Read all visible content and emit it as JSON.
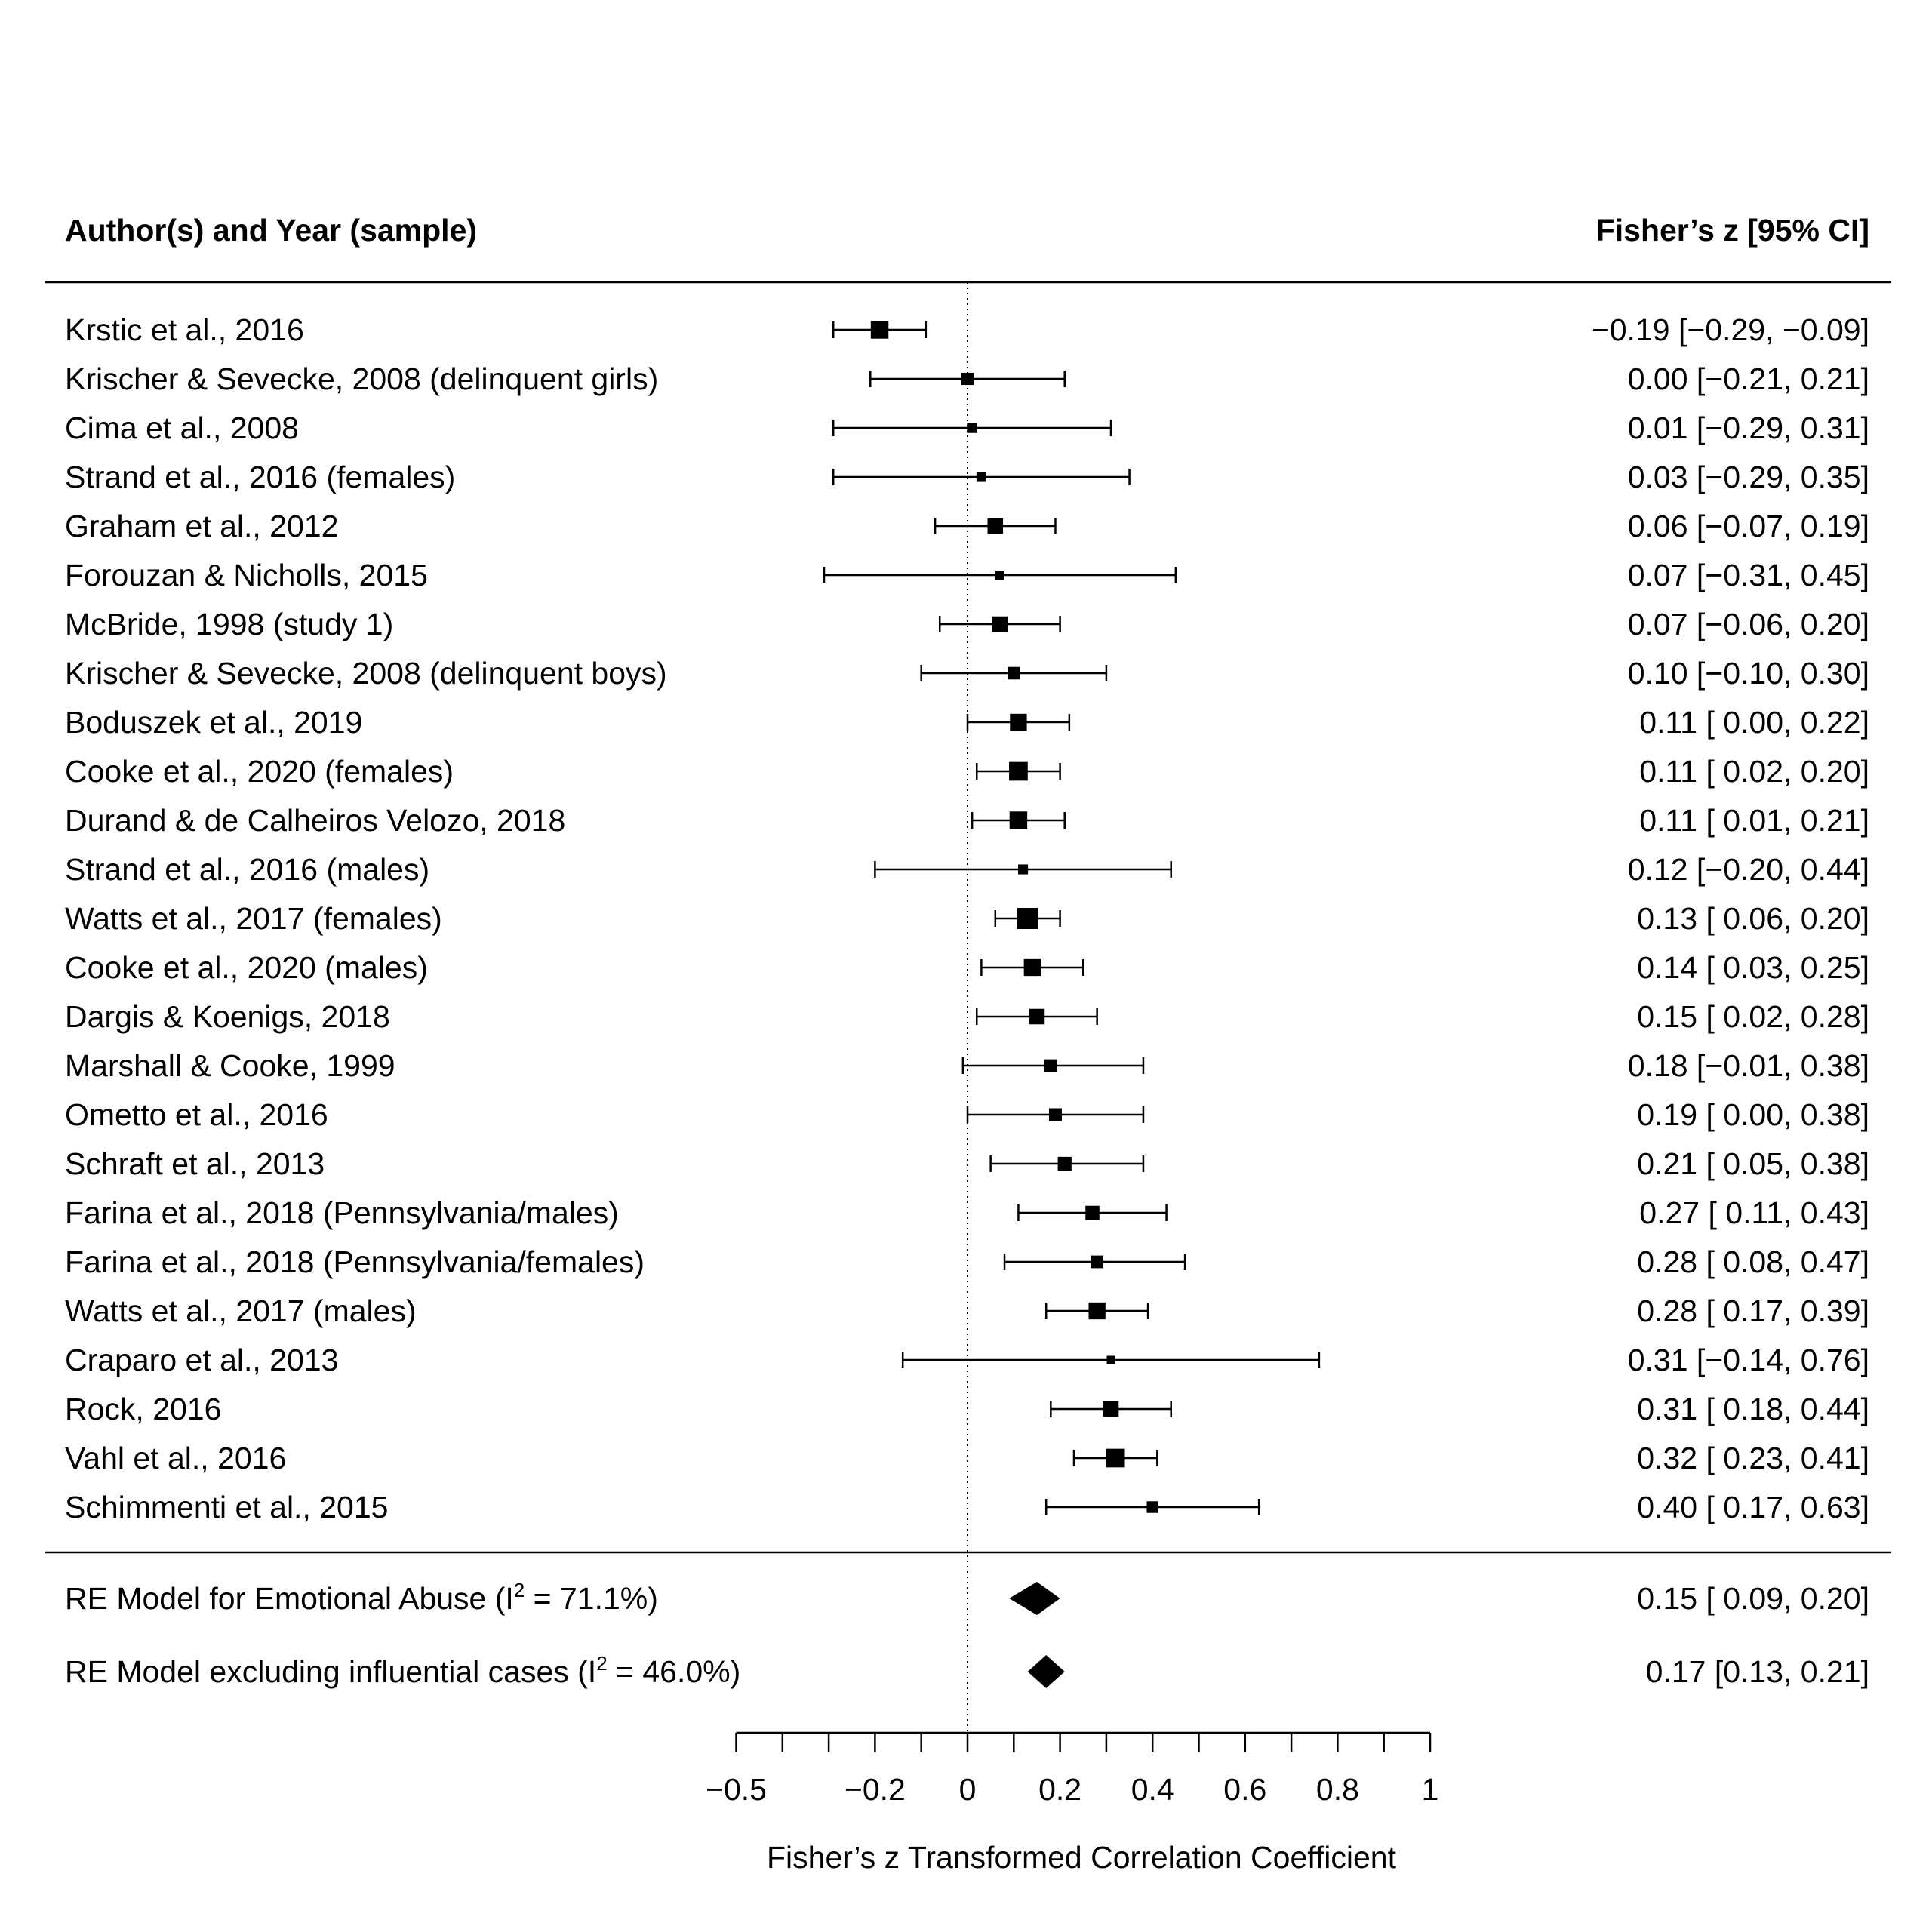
{
  "chart_data": {
    "type": "forest",
    "header_left": "Author(s) and Year (sample)",
    "header_right": "Fisher’s z [95% CI]",
    "xlabel": "Fisher’s z Transformed Correlation Coefficient",
    "xlim": [
      -0.5,
      1
    ],
    "major_ticks": [
      -0.5,
      -0.2,
      0,
      0.2,
      0.4,
      0.6,
      0.8,
      1
    ],
    "tick_labels": [
      "−0.5",
      "−0.2",
      "0",
      "0.2",
      "0.4",
      "0.6",
      "0.8",
      "1"
    ],
    "minor_tick_step": 0.1,
    "reference_line": 0,
    "studies": [
      {
        "label": "Krstic et al., 2016",
        "est": -0.19,
        "lo": -0.29,
        "hi": -0.09,
        "text": "−0.19 [−0.29, −0.09]"
      },
      {
        "label": "Krischer & Sevecke, 2008 (delinquent girls)",
        "est": 0.0,
        "lo": -0.21,
        "hi": 0.21,
        "text": "0.00 [−0.21,  0.21]"
      },
      {
        "label": "Cima et al., 2008",
        "est": 0.01,
        "lo": -0.29,
        "hi": 0.31,
        "text": "0.01 [−0.29,  0.31]"
      },
      {
        "label": "Strand et al., 2016 (females)",
        "est": 0.03,
        "lo": -0.29,
        "hi": 0.35,
        "text": "0.03 [−0.29,  0.35]"
      },
      {
        "label": "Graham et al., 2012",
        "est": 0.06,
        "lo": -0.07,
        "hi": 0.19,
        "text": "0.06 [−0.07,  0.19]"
      },
      {
        "label": "Forouzan & Nicholls, 2015",
        "est": 0.07,
        "lo": -0.31,
        "hi": 0.45,
        "text": "0.07 [−0.31,  0.45]"
      },
      {
        "label": "McBride, 1998 (study 1)",
        "est": 0.07,
        "lo": -0.06,
        "hi": 0.2,
        "text": "0.07 [−0.06,  0.20]"
      },
      {
        "label": "Krischer & Sevecke, 2008 (delinquent boys)",
        "est": 0.1,
        "lo": -0.1,
        "hi": 0.3,
        "text": "0.10 [−0.10,  0.30]"
      },
      {
        "label": "Boduszek et al., 2019",
        "est": 0.11,
        "lo": 0.0,
        "hi": 0.22,
        "text": "0.11 [ 0.00,  0.22]"
      },
      {
        "label": "Cooke et al., 2020 (females)",
        "est": 0.11,
        "lo": 0.02,
        "hi": 0.2,
        "text": "0.11 [ 0.02,  0.20]"
      },
      {
        "label": "Durand & de Calheiros Velozo, 2018",
        "est": 0.11,
        "lo": 0.01,
        "hi": 0.21,
        "text": "0.11 [ 0.01,  0.21]"
      },
      {
        "label": "Strand et al., 2016 (males)",
        "est": 0.12,
        "lo": -0.2,
        "hi": 0.44,
        "text": "0.12 [−0.20,  0.44]"
      },
      {
        "label": "Watts et al., 2017 (females)",
        "est": 0.13,
        "lo": 0.06,
        "hi": 0.2,
        "text": "0.13 [ 0.06,  0.20]"
      },
      {
        "label": "Cooke et al., 2020 (males)",
        "est": 0.14,
        "lo": 0.03,
        "hi": 0.25,
        "text": "0.14 [ 0.03,  0.25]"
      },
      {
        "label": "Dargis & Koenigs, 2018",
        "est": 0.15,
        "lo": 0.02,
        "hi": 0.28,
        "text": "0.15 [ 0.02,  0.28]"
      },
      {
        "label": "Marshall & Cooke, 1999",
        "est": 0.18,
        "lo": -0.01,
        "hi": 0.38,
        "text": "0.18 [−0.01,  0.38]"
      },
      {
        "label": "Ometto et al., 2016",
        "est": 0.19,
        "lo": 0.0,
        "hi": 0.38,
        "text": "0.19 [ 0.00,  0.38]"
      },
      {
        "label": "Schraft et al., 2013",
        "est": 0.21,
        "lo": 0.05,
        "hi": 0.38,
        "text": "0.21 [ 0.05,  0.38]"
      },
      {
        "label": "Farina et al., 2018 (Pennsylvania/males)",
        "est": 0.27,
        "lo": 0.11,
        "hi": 0.43,
        "text": "0.27 [ 0.11,  0.43]"
      },
      {
        "label": "Farina et al., 2018 (Pennsylvania/females)",
        "est": 0.28,
        "lo": 0.08,
        "hi": 0.47,
        "text": "0.28 [ 0.08,  0.47]"
      },
      {
        "label": "Watts et al., 2017 (males)",
        "est": 0.28,
        "lo": 0.17,
        "hi": 0.39,
        "text": "0.28 [ 0.17,  0.39]"
      },
      {
        "label": "Craparo et al., 2013",
        "est": 0.31,
        "lo": -0.14,
        "hi": 0.76,
        "text": "0.31 [−0.14,  0.76]"
      },
      {
        "label": "Rock, 2016",
        "est": 0.31,
        "lo": 0.18,
        "hi": 0.44,
        "text": "0.31 [ 0.18,  0.44]"
      },
      {
        "label": "Vahl et al., 2016",
        "est": 0.32,
        "lo": 0.23,
        "hi": 0.41,
        "text": "0.32 [ 0.23,  0.41]"
      },
      {
        "label": "Schimmenti et al., 2015",
        "est": 0.4,
        "lo": 0.17,
        "hi": 0.63,
        "text": "0.40 [ 0.17,  0.63]"
      }
    ],
    "summaries": [
      {
        "label_pre": "RE Model for Emotional Abuse (I",
        "sup": "2",
        "label_post": " = 71.1%)",
        "est": 0.15,
        "lo": 0.09,
        "hi": 0.2,
        "text": "0.15 [ 0.09,  0.20]"
      },
      {
        "label_pre": "RE Model excluding influential cases (I",
        "sup": "2",
        "label_post": " = 46.0%)",
        "est": 0.17,
        "lo": 0.13,
        "hi": 0.21,
        "text": "0.17 [0.13, 0.21]"
      }
    ]
  }
}
